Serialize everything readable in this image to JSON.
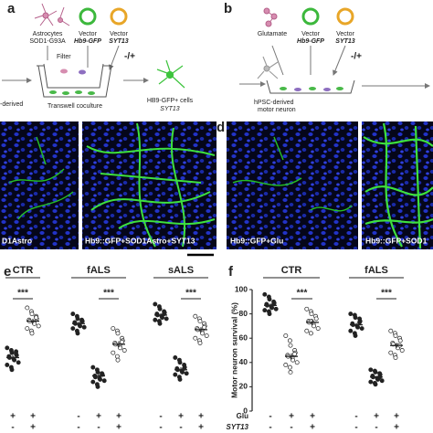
{
  "panel_a": {
    "label": "a",
    "astro": "Astrocytes",
    "astro_line": "SOD1-G93A",
    "vec1": "Vector",
    "vec1_name": "Hb9-GFP",
    "vec2": "Vector",
    "vec2_name": "SYT13",
    "plusminus": "-/+",
    "filter": "Filter",
    "coculture": "Transwell coculture",
    "left_text": "-derived",
    "out1": "HB9-GFP+ cells",
    "out2": "SYT13"
  },
  "panel_b": {
    "label": "b",
    "glu": "Glutamate",
    "vec1": "Vector",
    "vec1_name": "Hb9-GFP",
    "vec2": "Vector",
    "vec2_name": "SYT13",
    "plusminus": "-/+",
    "src1": "hPSC-derived",
    "src2": "motor neuron"
  },
  "panel_c": {
    "img1": "D1Astro",
    "img2": "Hb9::GFP+SOD1Astro+SYT13"
  },
  "panel_d": {
    "label": "d",
    "img1": "Hb9::GFP+Glu",
    "img2": "Hb9::GFP+SOD1"
  },
  "chart_data": [
    {
      "type": "scatter",
      "panel_label": "e",
      "ylim": [
        0,
        100
      ],
      "significance": "***",
      "groups": [
        {
          "name": "CTR",
          "columns": [
            {
              "values": [
                52,
                50,
                48,
                47,
                46,
                45,
                44,
                43,
                42,
                40,
                38,
                36,
                34,
                49
              ],
              "mean": 44,
              "sem": 2,
              "fill": "#222222",
              "signs": [
                "+",
                "-"
              ]
            },
            {
              "values": [
                85,
                82,
                80,
                78,
                76,
                75,
                74,
                73,
                72,
                70,
                68,
                66,
                64,
                77
              ],
              "mean": 74,
              "sem": 2,
              "fill": "#ffffff",
              "signs": [
                "+",
                "+"
              ]
            }
          ]
        },
        {
          "name": "fALS",
          "columns": [
            {
              "values": [
                80,
                78,
                76,
                75,
                74,
                73,
                72,
                71,
                70,
                69,
                68,
                66,
                64,
                74
              ],
              "mean": 72,
              "sem": 1.5,
              "fill": "#222222",
              "signs": [
                "-",
                "-"
              ]
            },
            {
              "values": [
                36,
                34,
                32,
                31,
                30,
                29,
                28,
                27,
                26,
                25,
                24,
                22,
                20,
                30
              ],
              "mean": 29,
              "sem": 1.5,
              "fill": "#222222",
              "signs": [
                "+",
                "-"
              ]
            },
            {
              "values": [
                68,
                66,
                64,
                60,
                58,
                56,
                55,
                54,
                52,
                50,
                48,
                45,
                42,
                57
              ],
              "mean": 55,
              "sem": 2.5,
              "fill": "#ffffff",
              "signs": [
                "+",
                "+"
              ]
            }
          ]
        },
        {
          "name": "sALS",
          "columns": [
            {
              "values": [
                88,
                86,
                84,
                82,
                81,
                80,
                79,
                78,
                77,
                76,
                75,
                74,
                72,
                80
              ],
              "mean": 79,
              "sem": 1.5,
              "fill": "#222222",
              "signs": [
                "-",
                "-"
              ]
            },
            {
              "values": [
                44,
                42,
                40,
                38,
                36,
                35,
                34,
                33,
                32,
                31,
                30,
                28,
                26,
                35
              ],
              "mean": 34,
              "sem": 2,
              "fill": "#222222",
              "signs": [
                "+",
                "-"
              ]
            },
            {
              "values": [
                78,
                76,
                74,
                72,
                70,
                68,
                67,
                66,
                64,
                62,
                60,
                58,
                56,
                69
              ],
              "mean": 67,
              "sem": 2,
              "fill": "#ffffff",
              "signs": [
                "+",
                "+"
              ]
            }
          ]
        }
      ]
    },
    {
      "type": "scatter",
      "panel_label": "f",
      "ylim": [
        0,
        100
      ],
      "yticks": [
        0,
        20,
        40,
        60,
        80,
        100
      ],
      "ylabel": "Motor neuron survival (%)",
      "significance": "***",
      "row_labels": [
        "Glu",
        "SYT13"
      ],
      "groups": [
        {
          "name": "CTR",
          "columns": [
            {
              "values": [
                96,
                94,
                92,
                90,
                89,
                88,
                87,
                86,
                85,
                84,
                83,
                82,
                80,
                88
              ],
              "mean": 87,
              "sem": 1.5,
              "fill": "#222222",
              "signs": [
                "-",
                "-"
              ]
            },
            {
              "values": [
                62,
                58,
                54,
                50,
                48,
                46,
                45,
                44,
                42,
                40,
                38,
                36,
                32,
                47
              ],
              "mean": 45,
              "sem": 2.5,
              "fill": "#ffffff",
              "signs": [
                "+",
                "-"
              ]
            },
            {
              "values": [
                84,
                82,
                80,
                78,
                76,
                74,
                73,
                72,
                70,
                68,
                66,
                64,
                74
              ],
              "mean": 73,
              "sem": 2,
              "fill": "#ffffff",
              "signs": [
                "+",
                "+"
              ]
            }
          ]
        },
        {
          "name": "fALS",
          "columns": [
            {
              "values": [
                80,
                79,
                77,
                76,
                74,
                72,
                71,
                70,
                69,
                68,
                66,
                64,
                62,
                73
              ],
              "mean": 71,
              "sem": 1.5,
              "fill": "#222222",
              "signs": [
                "-",
                "-"
              ]
            },
            {
              "values": [
                34,
                33,
                32,
                31,
                30,
                29,
                28,
                27,
                26,
                25,
                24,
                23,
                22,
                28
              ],
              "mean": 28,
              "sem": 1,
              "fill": "#222222",
              "signs": [
                "+",
                "-"
              ]
            },
            {
              "values": [
                66,
                64,
                62,
                60,
                58,
                56,
                55,
                54,
                52,
                50,
                48,
                46,
                44,
                54
              ],
              "mean": 54,
              "sem": 2,
              "fill": "#ffffff",
              "signs": [
                "+",
                "+"
              ]
            }
          ]
        }
      ]
    }
  ]
}
